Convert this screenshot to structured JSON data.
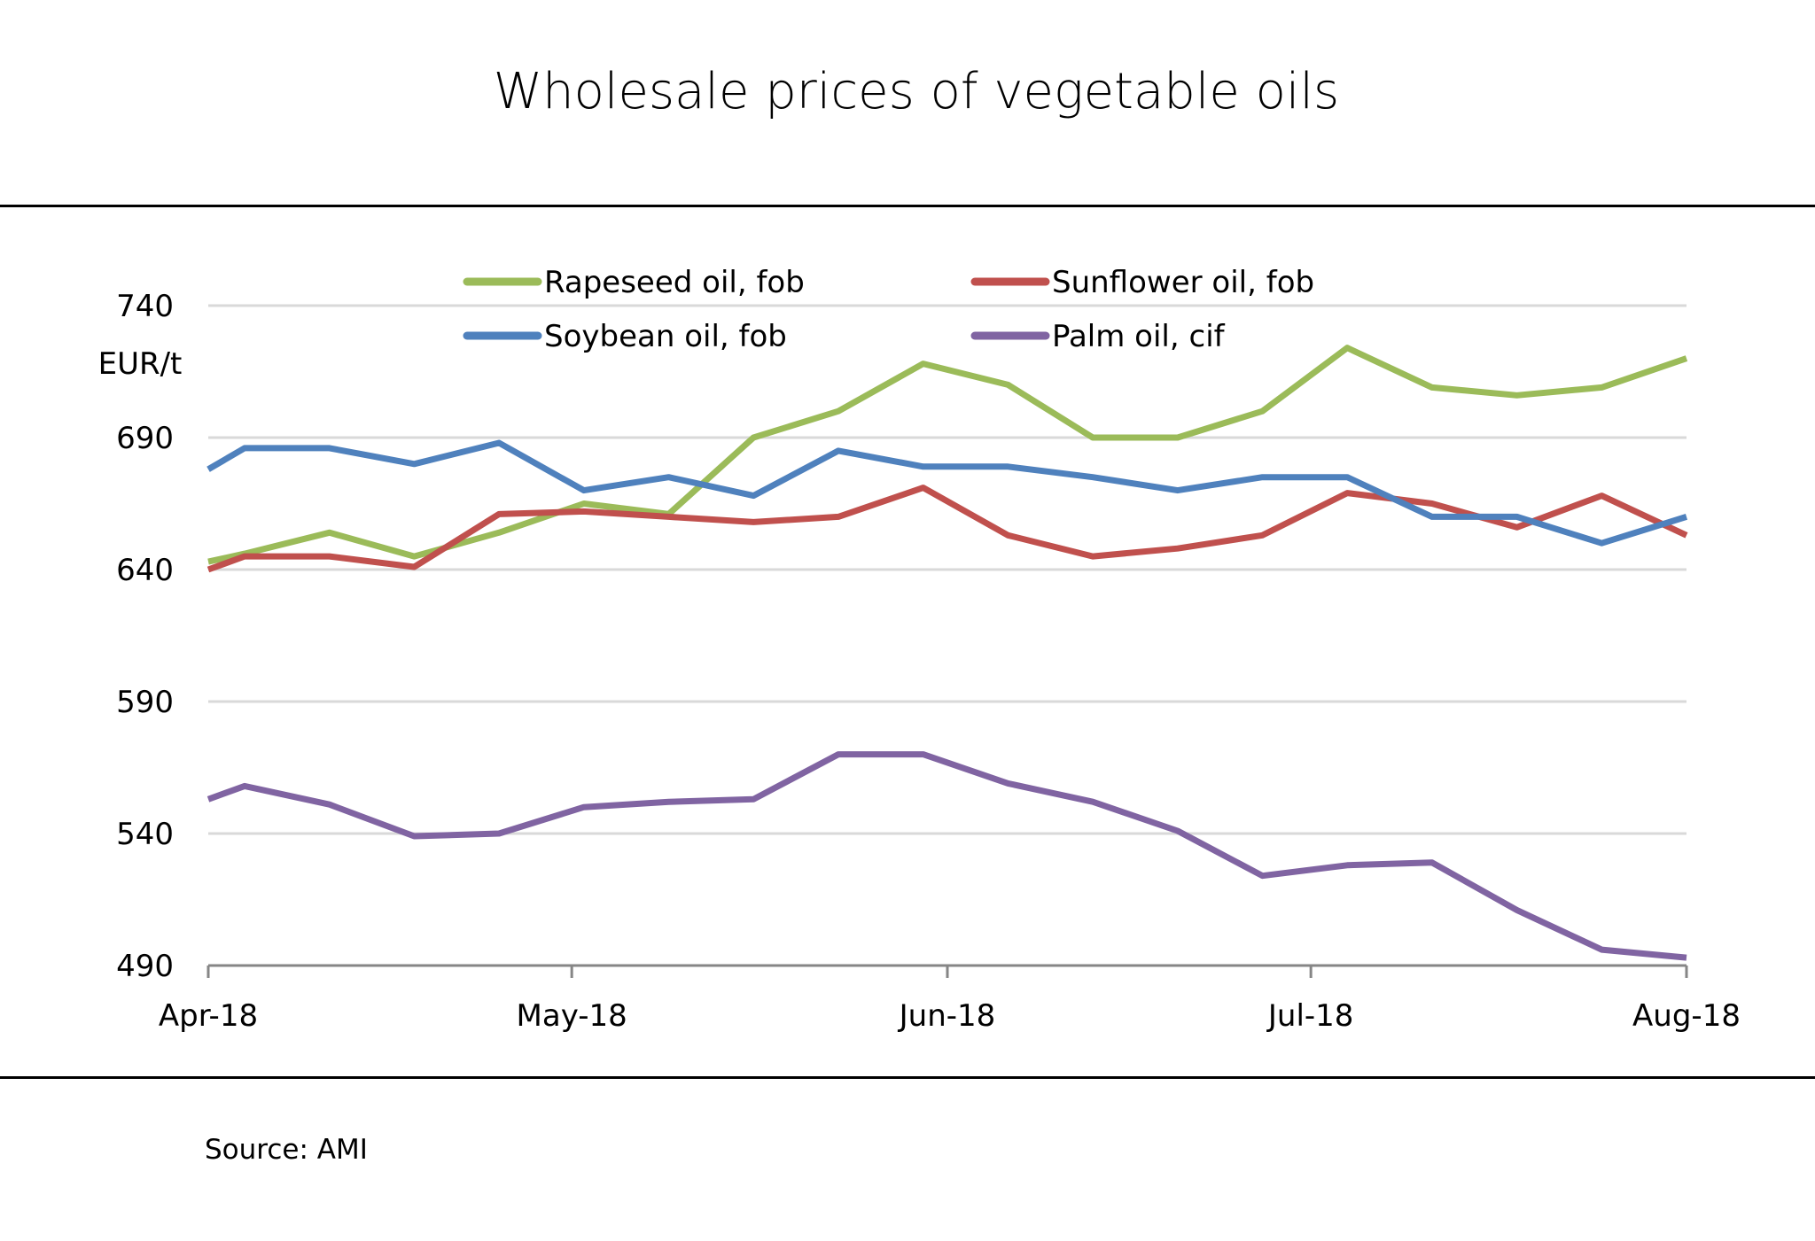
{
  "chart_data": {
    "type": "line",
    "title": "Wholesale prices of vegetable oils",
    "xlabel": "",
    "ylabel": "EUR/t",
    "source": "Source: AMI",
    "ylim": [
      490,
      740
    ],
    "yticks": [
      490,
      540,
      590,
      640,
      690,
      740
    ],
    "grid": true,
    "legend_position": "top",
    "x_range": [
      "2018-04-01",
      "2018-08-01"
    ],
    "xticks": [
      {
        "date": "2018-04-01",
        "label": "Apr-18"
      },
      {
        "date": "2018-05-01",
        "label": "May-18"
      },
      {
        "date": "2018-06-01",
        "label": "Jun-18"
      },
      {
        "date": "2018-07-01",
        "label": "Jul-18"
      },
      {
        "date": "2018-08-01",
        "label": "Aug-18"
      }
    ],
    "x": [
      "2018-04-01",
      "2018-04-04",
      "2018-04-11",
      "2018-04-18",
      "2018-04-25",
      "2018-05-02",
      "2018-05-09",
      "2018-05-16",
      "2018-05-23",
      "2018-05-30",
      "2018-06-06",
      "2018-06-13",
      "2018-06-20",
      "2018-06-27",
      "2018-07-04",
      "2018-07-11",
      "2018-07-18",
      "2018-07-25",
      "2018-08-01"
    ],
    "series": [
      {
        "name": "Rapeseed oil, fob",
        "color": "#9bbb59",
        "values": [
          643,
          646,
          654,
          645,
          654,
          665,
          661,
          690,
          700,
          718,
          710,
          690,
          690,
          700,
          724,
          709,
          706,
          709,
          720
        ]
      },
      {
        "name": "Sunflower oil, fob",
        "color": "#c0504d",
        "values": [
          640,
          645,
          645,
          641,
          661,
          662,
          660,
          658,
          660,
          671,
          653,
          645,
          648,
          653,
          669,
          665,
          656,
          668,
          653
        ]
      },
      {
        "name": "Soybean oil, fob",
        "color": "#4f81bd",
        "values": [
          678,
          686,
          686,
          680,
          688,
          670,
          675,
          668,
          685,
          679,
          679,
          675,
          670,
          675,
          675,
          660,
          660,
          650,
          660
        ]
      },
      {
        "name": "Palm oil, cif",
        "color": "#8064a2",
        "values": [
          553,
          558,
          551,
          539,
          540,
          550,
          552,
          553,
          570,
          570,
          559,
          552,
          541,
          524,
          528,
          529,
          511,
          496,
          493
        ]
      }
    ]
  }
}
